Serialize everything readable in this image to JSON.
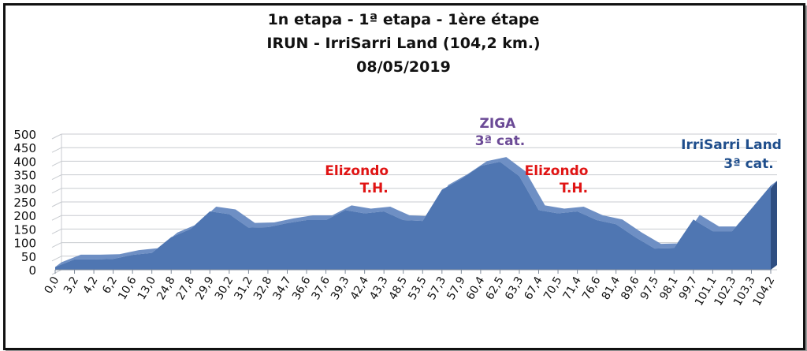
{
  "title_lines": [
    "1n etapa - 1ª etapa - 1ère étape",
    "IRUN - IrriSarri Land (104,2 km.)",
    "08/05/2019"
  ],
  "colors": {
    "area_fill": "#4f76b2",
    "area_side": "#2f4f82",
    "grid": "#c8cbd0",
    "red_label": "#e01414",
    "purple_label": "#6b4a96",
    "blue_label": "#1f4e8c"
  },
  "chart_data": {
    "type": "area",
    "title": "1n etapa - 1ª etapa - 1ère étape / IRUN - IrriSarri Land (104,2 km.) / 08/05/2019",
    "xlabel": "",
    "ylabel": "",
    "ylim": [
      0,
      500
    ],
    "yticks": [
      0,
      50,
      100,
      150,
      200,
      250,
      300,
      350,
      400,
      450,
      500
    ],
    "grid": true,
    "categories": [
      "0,0",
      "3,2",
      "4,2",
      "6,2",
      "10,6",
      "13,0",
      "24,8",
      "27,8",
      "29,9",
      "30,2",
      "31,2",
      "32,8",
      "34,7",
      "36,6",
      "37,6",
      "39,3",
      "42,4",
      "43,3",
      "48,5",
      "53,5",
      "57,3",
      "57,9",
      "60,4",
      "62,5",
      "63,3",
      "67,4",
      "70,5",
      "71,4",
      "76,6",
      "81,4",
      "89,6",
      "97,5",
      "98,1",
      "99,7",
      "101,1",
      "102,3",
      "103,3",
      "104,2"
    ],
    "series": [
      {
        "values": [
          10,
          38,
          38,
          40,
          55,
          62,
          120,
          150,
          215,
          205,
          155,
          157,
          172,
          183,
          183,
          220,
          208,
          215,
          183,
          180,
          295,
          335,
          383,
          398,
          345,
          220,
          208,
          215,
          183,
          168,
          120,
          78,
          80,
          185,
          142,
          142,
          225,
          310
        ]
      }
    ],
    "annotations": [
      {
        "lines": [
          "Elizondo",
          "T.H."
        ],
        "category": "42,4",
        "color": "red"
      },
      {
        "lines": [
          "ZIGA",
          "3ª cat."
        ],
        "category": "62,5",
        "color": "purple"
      },
      {
        "lines": [
          "Elizondo",
          "T.H."
        ],
        "category": "70,5",
        "color": "red"
      },
      {
        "lines": [
          "IrriSarri Land",
          "3ª cat."
        ],
        "category": "104,2",
        "color": "blue"
      }
    ]
  }
}
